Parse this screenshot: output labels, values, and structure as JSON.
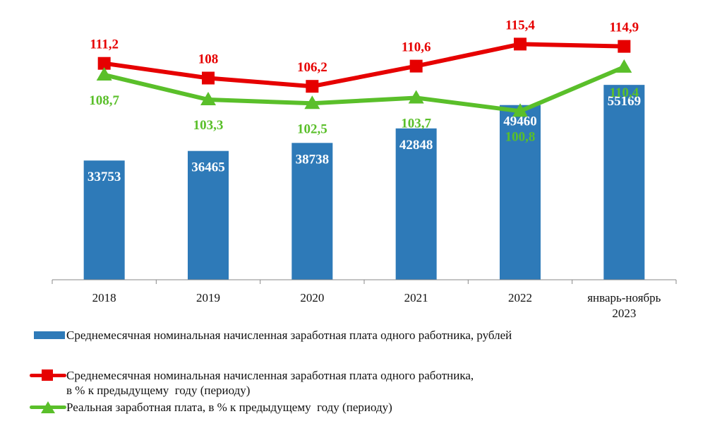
{
  "colors": {
    "bar": "#2e7ab8",
    "nominal": "#e60000",
    "real": "#5abf2a",
    "axis": "#888888",
    "text": "#111111"
  },
  "chart_data": {
    "type": "bar+line",
    "categories": [
      "2018",
      "2019",
      "2020",
      "2021",
      "2022",
      "январь-ноябрь\n2023"
    ],
    "series": [
      {
        "name": "Среднемесячная номинальная начисленная заработная плата одного работника, рублей",
        "kind": "bar",
        "values": [
          33753,
          36465,
          38738,
          42848,
          49460,
          55169
        ]
      },
      {
        "name": "Среднемесячная номинальная начисленная заработная плата одного работника, в % к предыдущему году (периоду)",
        "kind": "line",
        "marker": "square",
        "values": [
          111.2,
          108,
          106.2,
          110.6,
          115.4,
          114.9
        ],
        "labels": [
          "111,2",
          "108",
          "106,2",
          "110,6",
          "115,4",
          "114,9"
        ]
      },
      {
        "name": "Реальная заработная плата, в % к предыдущему году (периоду)",
        "kind": "line",
        "marker": "triangle",
        "values": [
          108.7,
          103.3,
          102.5,
          103.7,
          100.8,
          110.4
        ],
        "labels": [
          "108,7",
          "103,3",
          "102,5",
          "103,7",
          "100,8",
          "110,4"
        ]
      }
    ],
    "bar_axis": {
      "ylim": [
        0,
        60000
      ]
    },
    "line_axis": {
      "ylim": [
        93,
        118
      ]
    },
    "grid": false,
    "legend_position": "bottom"
  },
  "legend": {
    "bar_text": "Среднемесячная номинальная начисленная заработная плата одного работника, рублей",
    "nominal_text": "Среднемесячная номинальная начисленная заработная плата одного работника,\nв % к предыдущему  году (периоду)",
    "real_text": "Реальная заработная плата, в % к предыдущему  году (периоду)"
  }
}
